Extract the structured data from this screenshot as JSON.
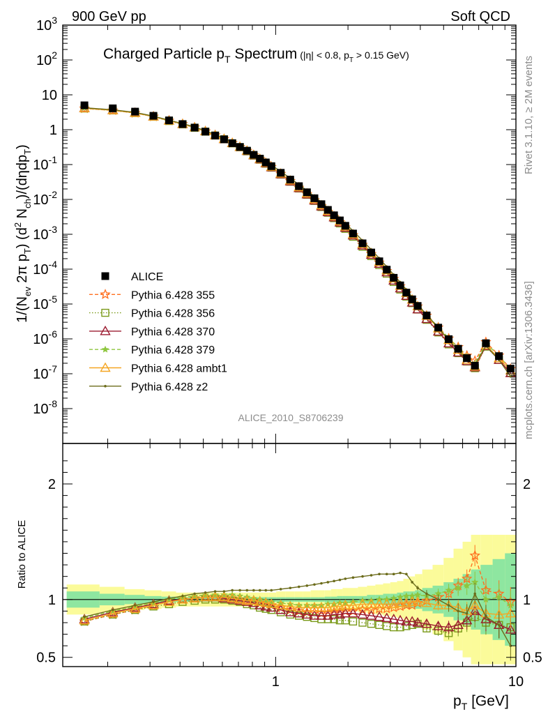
{
  "header": {
    "left": "900 GeV pp",
    "right": "Soft QCD"
  },
  "side_labels": {
    "rivet": "Rivet 3.1.10, ≥ 2M events",
    "source": "mcplots.cern.ch [arXiv:1306.3436]"
  },
  "chart_data": [
    {
      "type": "line",
      "panel": "main",
      "title": "Charged Particle p_T Spectrum",
      "title_main": "Charged Particle p",
      "title_sub": "T",
      "title_tail": " Spectrum",
      "title_cut": "(|η| < 0.8, p",
      "title_cut_sub": "T",
      "title_cut_tail": " > 0.15 GeV)",
      "ylabel": "1/(N_ev 2π p_T) (d²N_ch)/(dηdp_T)",
      "xlabel": "p_T [GeV]",
      "analysis_id": "ALICE_2010_S8706239",
      "x_scale": "log",
      "y_scale": "log",
      "xlim": [
        0.13,
        10.0
      ],
      "ylim": [
        1e-09,
        1000
      ],
      "x_tick_labels": [
        "1",
        "10"
      ],
      "y_tick_labels": [
        {
          "base": "10",
          "exp": "3"
        },
        {
          "base": "10",
          "exp": "2"
        },
        {
          "base": "10",
          "exp": ""
        },
        {
          "base": "1",
          "exp": ""
        },
        {
          "base": "10",
          "exp": "-1"
        },
        {
          "base": "10",
          "exp": "-2"
        },
        {
          "base": "10",
          "exp": "-3"
        },
        {
          "base": "10",
          "exp": "-4"
        },
        {
          "base": "10",
          "exp": "-5"
        },
        {
          "base": "10",
          "exp": "-6"
        },
        {
          "base": "10",
          "exp": "-7"
        },
        {
          "base": "10",
          "exp": "-8"
        }
      ],
      "legend_position": "left-middle",
      "legend": [
        {
          "name": "ALICE",
          "color": "#000000",
          "marker": "square-filled",
          "line": "none"
        },
        {
          "name": "Pythia 6.428 355",
          "color": "#ff6f1e",
          "marker": "star-open",
          "line": "dashed"
        },
        {
          "name": "Pythia 6.428 356",
          "color": "#7a9a1a",
          "marker": "square-open",
          "line": "dotted"
        },
        {
          "name": "Pythia 6.428 370",
          "color": "#9b1b30",
          "marker": "triangle-open",
          "line": "solid"
        },
        {
          "name": "Pythia 6.428 379",
          "color": "#8ec63f",
          "marker": "star-filled",
          "line": "dashed"
        },
        {
          "name": "Pythia 6.428 ambt1",
          "color": "#f5a623",
          "marker": "triangle-open",
          "line": "solid"
        },
        {
          "name": "Pythia 6.428 z2",
          "color": "#6b6b1a",
          "marker": "dot",
          "line": "solid"
        }
      ],
      "data_series": {
        "name": "ALICE",
        "x": [
          0.16,
          0.21,
          0.26,
          0.31,
          0.36,
          0.41,
          0.46,
          0.51,
          0.56,
          0.61,
          0.66,
          0.71,
          0.76,
          0.81,
          0.86,
          0.91,
          0.96,
          1.05,
          1.15,
          1.25,
          1.35,
          1.45,
          1.55,
          1.65,
          1.75,
          1.85,
          1.95,
          2.1,
          2.3,
          2.5,
          2.7,
          2.9,
          3.1,
          3.3,
          3.5,
          3.7,
          3.9,
          4.25,
          4.75,
          5.25,
          5.75,
          6.25,
          6.75,
          7.5,
          8.5,
          9.5
        ],
        "y": [
          5.0,
          4.1,
          3.3,
          2.5,
          1.85,
          1.45,
          1.15,
          0.88,
          0.68,
          0.53,
          0.41,
          0.32,
          0.25,
          0.19,
          0.148,
          0.115,
          0.09,
          0.058,
          0.037,
          0.024,
          0.016,
          0.0108,
          0.0073,
          0.005,
          0.0035,
          0.0025,
          0.00175,
          0.00105,
          0.00055,
          0.0003,
          0.000168,
          9.65e-05,
          5.65e-05,
          3.42e-05,
          2.12e-05,
          1.36e-05,
          8.8e-06,
          4.7e-06,
          2.1e-06,
          9.8e-07,
          5.2e-07,
          2.8e-07,
          1.7e-07,
          7.5e-07,
          3.2e-07,
          1.4e-07
        ]
      }
    },
    {
      "type": "line",
      "panel": "ratio",
      "ylabel": "Ratio to ALICE",
      "x_scale": "log",
      "xlim": [
        0.13,
        10.0
      ],
      "ylim": [
        0.42,
        2.35
      ],
      "y_tick_labels": [
        "0.5",
        "1",
        "2"
      ],
      "x": [
        0.16,
        0.21,
        0.26,
        0.31,
        0.36,
        0.41,
        0.46,
        0.51,
        0.56,
        0.61,
        0.66,
        0.71,
        0.76,
        0.81,
        0.86,
        0.91,
        0.96,
        1.05,
        1.15,
        1.25,
        1.35,
        1.45,
        1.55,
        1.65,
        1.75,
        1.85,
        1.95,
        2.1,
        2.3,
        2.5,
        2.7,
        2.9,
        3.1,
        3.3,
        3.5,
        3.7,
        3.9,
        4.25,
        4.75,
        5.25,
        5.75,
        6.25,
        6.75,
        7.5,
        8.5,
        9.5
      ],
      "stat_band": [
        0.93,
        0.95,
        0.96,
        0.97,
        0.975,
        0.98,
        0.98,
        0.98,
        0.98,
        0.98,
        0.98,
        0.98,
        0.98,
        0.98,
        0.98,
        0.98,
        0.98,
        0.98,
        0.98,
        0.98,
        0.98,
        0.98,
        0.98,
        0.975,
        0.975,
        0.97,
        0.97,
        0.97,
        0.97,
        0.96,
        0.96,
        0.95,
        0.95,
        0.94,
        0.93,
        0.93,
        0.92,
        0.9,
        0.88,
        0.85,
        0.82,
        0.78,
        0.74,
        0.7,
        0.65,
        0.6
      ],
      "syst_band": [
        0.87,
        0.89,
        0.91,
        0.92,
        0.93,
        0.94,
        0.94,
        0.94,
        0.94,
        0.94,
        0.94,
        0.94,
        0.94,
        0.94,
        0.94,
        0.94,
        0.94,
        0.93,
        0.93,
        0.93,
        0.93,
        0.92,
        0.92,
        0.92,
        0.91,
        0.91,
        0.9,
        0.9,
        0.89,
        0.88,
        0.87,
        0.86,
        0.85,
        0.84,
        0.82,
        0.8,
        0.78,
        0.74,
        0.7,
        0.64,
        0.56,
        0.5,
        0.44,
        0.44,
        0.44,
        0.44
      ],
      "series": [
        {
          "name": "Pythia 6.428 355",
          "values": [
            0.81,
            0.87,
            0.91,
            0.95,
            0.98,
            1.0,
            1.01,
            1.02,
            1.02,
            1.02,
            1.01,
            1.0,
            0.99,
            0.98,
            0.97,
            0.96,
            0.95,
            0.93,
            0.91,
            0.9,
            0.89,
            0.89,
            0.88,
            0.88,
            0.89,
            0.89,
            0.9,
            0.9,
            0.91,
            0.91,
            0.92,
            0.92,
            0.93,
            0.94,
            0.95,
            0.95,
            0.97,
            0.99,
            1.02,
            1.05,
            1.12,
            1.18,
            1.38,
            1.08,
            1.05,
            0.98
          ]
        },
        {
          "name": "Pythia 6.428 356",
          "values": [
            0.81,
            0.87,
            0.91,
            0.94,
            0.96,
            0.98,
            0.99,
            1.0,
            1.0,
            1.0,
            0.99,
            0.98,
            0.96,
            0.95,
            0.93,
            0.92,
            0.91,
            0.89,
            0.87,
            0.86,
            0.85,
            0.84,
            0.83,
            0.83,
            0.83,
            0.82,
            0.82,
            0.81,
            0.8,
            0.79,
            0.78,
            0.77,
            0.76,
            0.76,
            0.77,
            0.78,
            0.79,
            0.75,
            0.73,
            0.71,
            0.75,
            0.8,
            0.85,
            0.8,
            0.78,
            0.76
          ]
        },
        {
          "name": "Pythia 6.428 370",
          "values": [
            0.83,
            0.89,
            0.93,
            0.96,
            0.99,
            1.0,
            1.01,
            1.02,
            1.02,
            1.01,
            1.0,
            0.99,
            0.98,
            0.97,
            0.95,
            0.94,
            0.93,
            0.91,
            0.89,
            0.88,
            0.87,
            0.86,
            0.86,
            0.86,
            0.87,
            0.87,
            0.88,
            0.88,
            0.87,
            0.86,
            0.85,
            0.84,
            0.83,
            0.82,
            0.81,
            0.81,
            0.8,
            0.79,
            0.77,
            0.76,
            0.78,
            0.82,
            0.9,
            0.83,
            0.78,
            0.74
          ]
        },
        {
          "name": "Pythia 6.428 379",
          "values": [
            0.84,
            0.9,
            0.94,
            0.97,
            1.0,
            1.02,
            1.03,
            1.04,
            1.04,
            1.04,
            1.04,
            1.03,
            1.02,
            1.01,
            1.0,
            0.99,
            0.98,
            0.97,
            0.96,
            0.95,
            0.95,
            0.95,
            0.95,
            0.96,
            0.96,
            0.97,
            0.97,
            0.98,
            0.99,
            0.99,
            1.0,
            1.0,
            1.01,
            1.02,
            1.03,
            1.03,
            1.04,
            1.03,
            1.05,
            1.08,
            1.1,
            1.12,
            1.15,
            1.0,
            1.02,
            0.95
          ]
        },
        {
          "name": "Pythia 6.428 ambt1",
          "values": [
            0.82,
            0.88,
            0.92,
            0.95,
            0.98,
            1.0,
            1.01,
            1.02,
            1.02,
            1.02,
            1.01,
            1.0,
            0.99,
            0.99,
            0.98,
            0.97,
            0.96,
            0.95,
            0.94,
            0.93,
            0.93,
            0.93,
            0.93,
            0.93,
            0.94,
            0.94,
            0.95,
            0.95,
            0.96,
            0.96,
            0.96,
            0.96,
            0.96,
            0.97,
            0.97,
            0.98,
            0.98,
            0.97,
            0.95,
            0.95,
            0.93,
            0.9,
            0.95,
            0.88,
            0.87,
            0.88
          ]
        },
        {
          "name": "Pythia 6.428 z2",
          "values": [
            0.85,
            0.91,
            0.95,
            0.98,
            1.01,
            1.03,
            1.05,
            1.06,
            1.07,
            1.07,
            1.08,
            1.08,
            1.08,
            1.08,
            1.08,
            1.08,
            1.08,
            1.09,
            1.1,
            1.11,
            1.12,
            1.13,
            1.14,
            1.15,
            1.16,
            1.17,
            1.18,
            1.19,
            1.2,
            1.21,
            1.22,
            1.22,
            1.22,
            1.23,
            1.22,
            1.15,
            1.1,
            1.05,
            1.0,
            0.95,
            0.9,
            0.88,
            1.05,
            0.85,
            0.78,
            0.6
          ]
        }
      ]
    }
  ]
}
